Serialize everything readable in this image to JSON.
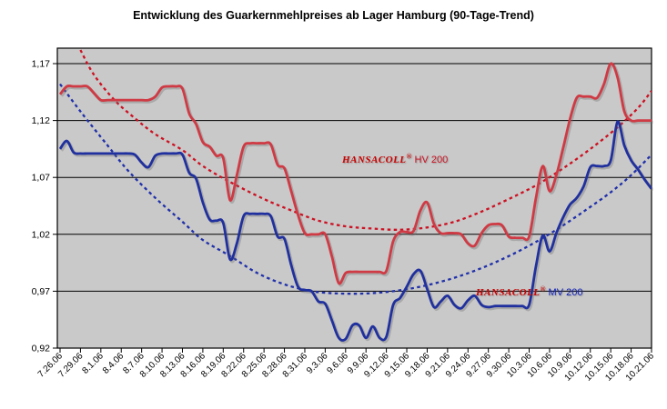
{
  "title": "Entwicklung des Guarkernmehlpreises ab Lager Hamburg (90-Tage-Trend)",
  "annotations": {
    "hv": {
      "brand": "HANSACOLL",
      "reg": "®",
      "product": " HV 200"
    },
    "mv": {
      "brand": "HANSACOLL",
      "reg": "®",
      "product": " MV 200"
    }
  },
  "colors": {
    "plot_background": "#c9c9c9",
    "gridline": "#000000",
    "hv_solid": "#cf3a44",
    "mv_solid": "#20309e",
    "hv_trend": "#cc1122",
    "mv_trend": "#2030aa",
    "axis_text": "#000000"
  },
  "chart_data": {
    "type": "line",
    "title": "Entwicklung des Guarkernmehlpreises ab Lager Hamburg (90-Tage-Trend)",
    "grid": "horizontal",
    "y_axis": {
      "min": 0.92,
      "max": 1.17,
      "step": 0.05,
      "tick_labels": [
        "1,17",
        "1,12",
        "1,07",
        "1,02",
        "0,97",
        "0,92"
      ]
    },
    "x_axis": {
      "tick_every_n_points": 3,
      "tick_labels": [
        "7.26.06",
        "7.29.06",
        "8.1.06",
        "8.4.06",
        "8.7.06",
        "8.10.06",
        "8.13.06",
        "8.16.06",
        "8.19.06",
        "8.22.06",
        "8.25.06",
        "8.28.06",
        "8.31.06",
        "9.3.06",
        "9.6.06",
        "9.9.06",
        "9.12.06",
        "9.15.06",
        "9.18.06",
        "9.21.06",
        "9.24.06",
        "9.27.06",
        "9.30.06",
        "10.3.06",
        "10.6.06",
        "10.9.06",
        "10.12.06",
        "10.15.06",
        "10.18.06",
        "10.21.06"
      ]
    },
    "series": [
      {
        "name": "HANSACOLL HV 200",
        "style": "solid",
        "color_key": "hv_solid",
        "values": [
          1.143,
          1.15,
          1.15,
          1.15,
          1.15,
          1.144,
          1.138,
          1.138,
          1.138,
          1.138,
          1.138,
          1.138,
          1.138,
          1.138,
          1.141,
          1.149,
          1.15,
          1.15,
          1.148,
          1.126,
          1.117,
          1.101,
          1.097,
          1.089,
          1.087,
          1.05,
          1.072,
          1.097,
          1.1,
          1.1,
          1.1,
          1.099,
          1.081,
          1.078,
          1.058,
          1.037,
          1.021,
          1.02,
          1.02,
          1.02,
          1.0,
          0.977,
          0.986,
          0.987,
          0.987,
          0.987,
          0.987,
          0.987,
          0.988,
          1.014,
          1.022,
          1.022,
          1.023,
          1.041,
          1.048,
          1.029,
          1.021,
          1.021,
          1.021,
          1.02,
          1.012,
          1.01,
          1.021,
          1.028,
          1.029,
          1.028,
          1.018,
          1.017,
          1.017,
          1.018,
          1.052,
          1.08,
          1.058,
          1.072,
          1.096,
          1.121,
          1.14,
          1.141,
          1.141,
          1.14,
          1.152,
          1.17,
          1.158,
          1.128,
          1.12,
          1.12,
          1.12,
          1.12
        ]
      },
      {
        "name": "HANSACOLL MV 200",
        "style": "solid",
        "color_key": "mv_solid",
        "values": [
          1.095,
          1.102,
          1.092,
          1.091,
          1.091,
          1.091,
          1.091,
          1.091,
          1.091,
          1.091,
          1.091,
          1.09,
          1.083,
          1.079,
          1.089,
          1.091,
          1.091,
          1.091,
          1.09,
          1.074,
          1.069,
          1.048,
          1.033,
          1.032,
          1.03,
          0.998,
          1.012,
          1.036,
          1.038,
          1.038,
          1.038,
          1.036,
          1.018,
          1.016,
          0.993,
          0.974,
          0.971,
          0.97,
          0.961,
          0.959,
          0.944,
          0.929,
          0.928,
          0.94,
          0.94,
          0.929,
          0.939,
          0.929,
          0.93,
          0.958,
          0.964,
          0.974,
          0.985,
          0.988,
          0.972,
          0.956,
          0.961,
          0.966,
          0.958,
          0.955,
          0.962,
          0.966,
          0.958,
          0.956,
          0.957,
          0.957,
          0.957,
          0.957,
          0.957,
          0.958,
          0.992,
          1.019,
          1.005,
          1.021,
          1.035,
          1.046,
          1.052,
          1.062,
          1.079,
          1.08,
          1.08,
          1.085,
          1.119,
          1.098,
          1.085,
          1.077,
          1.068,
          1.06
        ]
      },
      {
        "name": "HV 200 90-Tage-Trend",
        "style": "dashed",
        "color_key": "hv_trend",
        "points": [
          [
            3,
            1.182
          ],
          [
            5,
            1.16
          ],
          [
            8,
            1.138
          ],
          [
            11,
            1.122
          ],
          [
            14,
            1.108
          ],
          [
            18,
            1.094
          ],
          [
            21,
            1.08
          ],
          [
            25,
            1.066
          ],
          [
            30,
            1.051
          ],
          [
            34,
            1.041
          ],
          [
            38,
            1.032
          ],
          [
            42,
            1.027
          ],
          [
            46,
            1.025
          ],
          [
            50,
            1.024
          ],
          [
            54,
            1.026
          ],
          [
            58,
            1.031
          ],
          [
            62,
            1.04
          ],
          [
            66,
            1.051
          ],
          [
            70,
            1.063
          ],
          [
            74,
            1.078
          ],
          [
            78,
            1.095
          ],
          [
            82,
            1.114
          ],
          [
            85,
            1.131
          ],
          [
            87,
            1.146
          ]
        ]
      },
      {
        "name": "MV 200 90-Tage-Trend",
        "style": "dashed",
        "color_key": "mv_trend",
        "points": [
          [
            0,
            1.152
          ],
          [
            3,
            1.128
          ],
          [
            7,
            1.098
          ],
          [
            10,
            1.076
          ],
          [
            14,
            1.052
          ],
          [
            18,
            1.031
          ],
          [
            21,
            1.015
          ],
          [
            25,
            1.001
          ],
          [
            29,
            0.986
          ],
          [
            33,
            0.976
          ],
          [
            37,
            0.97
          ],
          [
            41,
            0.968
          ],
          [
            45,
            0.968
          ],
          [
            49,
            0.97
          ],
          [
            53,
            0.974
          ],
          [
            57,
            0.98
          ],
          [
            61,
            0.988
          ],
          [
            65,
            0.998
          ],
          [
            69,
            1.01
          ],
          [
            73,
            1.024
          ],
          [
            77,
            1.04
          ],
          [
            81,
            1.057
          ],
          [
            84,
            1.072
          ],
          [
            87,
            1.09
          ]
        ]
      }
    ]
  }
}
